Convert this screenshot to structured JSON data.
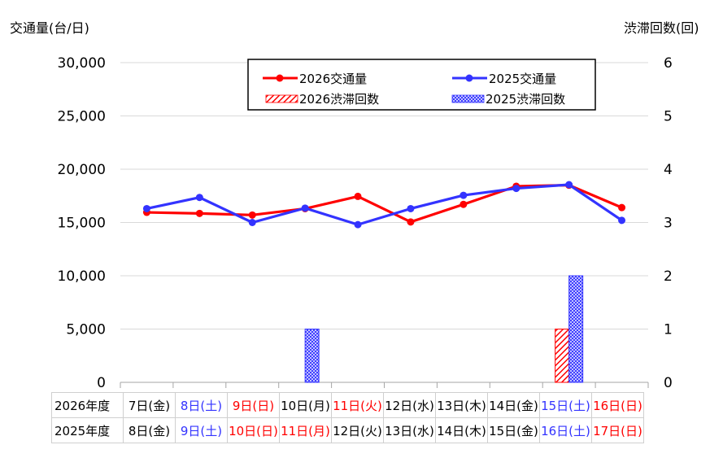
{
  "chart_data": {
    "type": "line+bar",
    "y_left_title": "交通量(台/日)",
    "y_right_title": "渋滞回数(回)",
    "y_left_ticks": [
      "30,000",
      "25,000",
      "20,000",
      "15,000",
      "10,000",
      "5,000",
      "0"
    ],
    "y_right_ticks": [
      "6",
      "5",
      "4",
      "3",
      "2",
      "1",
      "0"
    ],
    "ylim_left": [
      0,
      30000
    ],
    "ylim_right": [
      0,
      6
    ],
    "grid": true,
    "legend_position": "top",
    "legend": {
      "traffic_2026": "2026交通量",
      "traffic_2025": "2025交通量",
      "jam_2026": "2026渋滞回数",
      "jam_2025": "2025渋滞回数"
    },
    "colors": {
      "year2026": "#ff0000",
      "year2025": "#3333ff"
    },
    "traffic_2026": [
      15950,
      15850,
      15700,
      16300,
      17450,
      15050,
      16700,
      18400,
      18500,
      16400
    ],
    "traffic_2025": [
      16300,
      17350,
      15000,
      16350,
      14800,
      16300,
      17550,
      18200,
      18550,
      15200
    ],
    "jam_2026": [
      0,
      0,
      0,
      0,
      0,
      0,
      0,
      0,
      1,
      0
    ],
    "jam_2025": [
      0,
      0,
      0,
      1,
      0,
      0,
      0,
      0,
      2,
      0
    ]
  },
  "table": {
    "row_2026_label": "2026年度",
    "row_2025_label": "2025年度",
    "dates_2026": [
      "7日(金)",
      "8日(土)",
      "9日(日)",
      "10日(月)",
      "11日(火)",
      "12日(水)",
      "13日(木)",
      "14日(金)",
      "15日(土)",
      "16日(日)"
    ],
    "dates_2025": [
      "8日(金)",
      "9日(土)",
      "10日(日)",
      "11日(月)",
      "12日(火)",
      "13日(水)",
      "14日(木)",
      "15日(金)",
      "16日(土)",
      "17日(日)"
    ],
    "colors_2026": [
      "#000000",
      "#3333ff",
      "#ff0000",
      "#000000",
      "#ff0000",
      "#000000",
      "#000000",
      "#000000",
      "#3333ff",
      "#ff0000"
    ],
    "colors_2025": [
      "#000000",
      "#3333ff",
      "#ff0000",
      "#ff0000",
      "#000000",
      "#000000",
      "#000000",
      "#000000",
      "#3333ff",
      "#ff0000"
    ]
  }
}
